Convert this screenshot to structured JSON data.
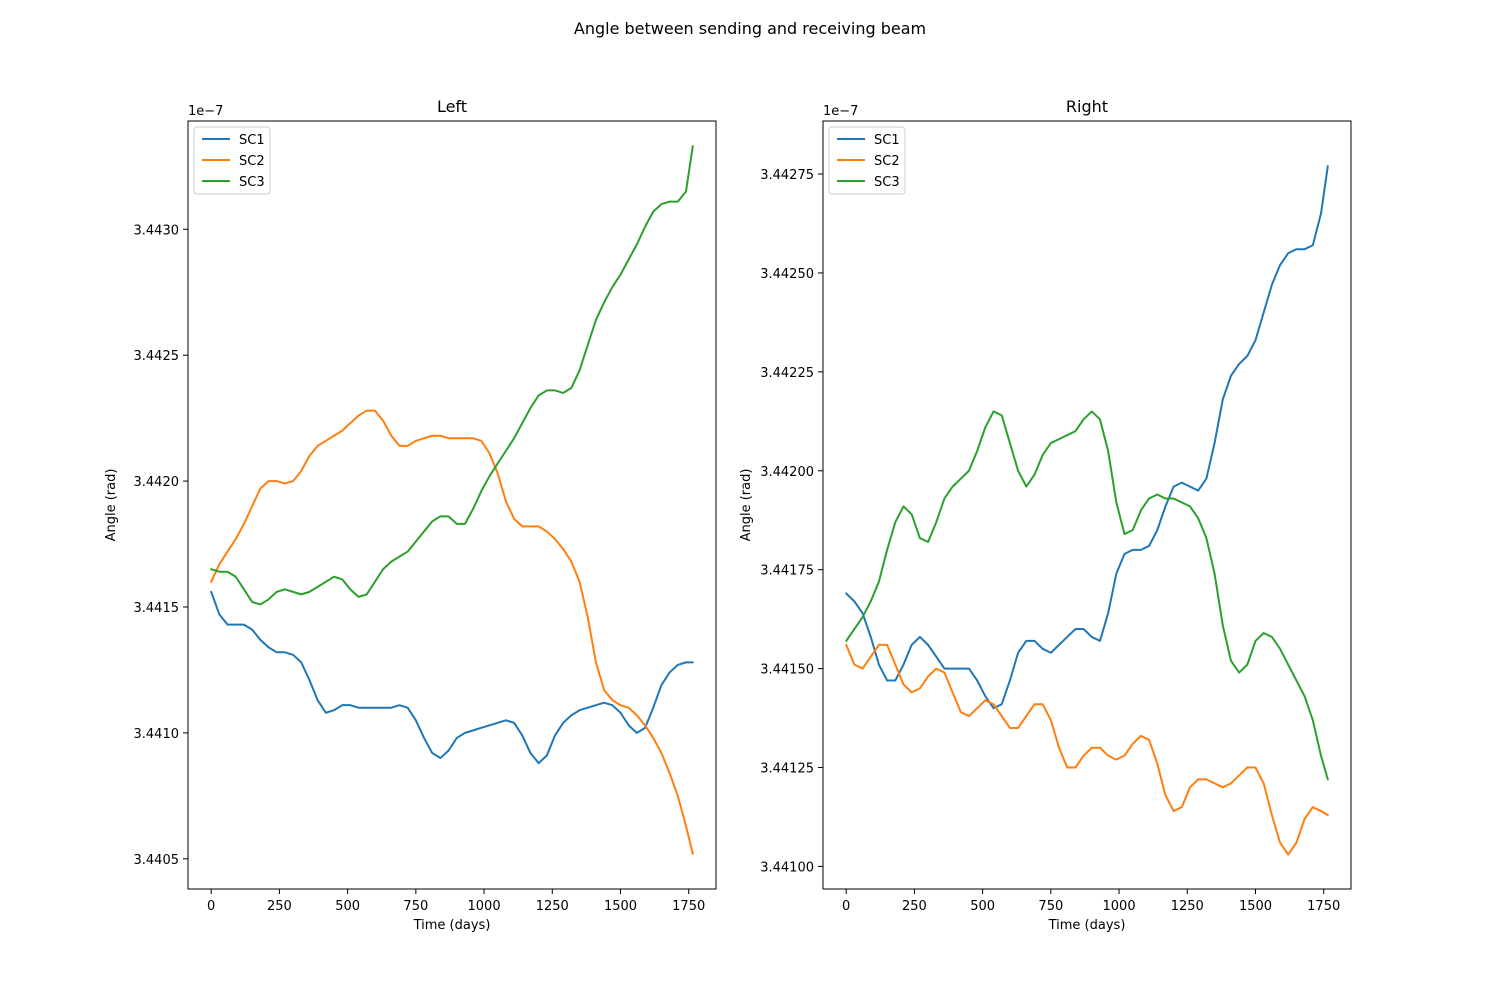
{
  "figure": {
    "title": "Angle between sending and receiving beam"
  },
  "colors": {
    "SC1": "#1f77b4",
    "SC2": "#ff7f0e",
    "SC3": "#2ca02c"
  },
  "chart_data": [
    {
      "type": "line",
      "title": "Left",
      "xlabel": "Time (days)",
      "ylabel": "Angle (rad)",
      "y_offset_label": "1e−7",
      "xlim": [
        -85,
        1850
      ],
      "ylim": [
        3.44038,
        3.44343
      ],
      "xticks": [
        0,
        250,
        500,
        750,
        1000,
        1250,
        1500,
        1750
      ],
      "xtick_labels": [
        "0",
        "250",
        "500",
        "750",
        "1000",
        "1250",
        "1500",
        "1750"
      ],
      "yticks": [
        3.4405,
        3.441,
        3.4415,
        3.442,
        3.4425,
        3.443
      ],
      "ytick_labels": [
        "3.4405",
        "3.4410",
        "3.4415",
        "3.4420",
        "3.4425",
        "3.4430"
      ],
      "legend": "upper left",
      "grid": false,
      "series": [
        {
          "name": "SC1",
          "x": [
            0,
            30,
            60,
            90,
            120,
            150,
            180,
            210,
            240,
            270,
            300,
            330,
            360,
            390,
            420,
            450,
            480,
            510,
            540,
            570,
            600,
            630,
            660,
            690,
            720,
            750,
            780,
            810,
            840,
            870,
            900,
            930,
            960,
            990,
            1020,
            1050,
            1080,
            1110,
            1140,
            1170,
            1200,
            1230,
            1260,
            1290,
            1320,
            1350,
            1380,
            1410,
            1440,
            1470,
            1500,
            1530,
            1560,
            1590,
            1620,
            1650,
            1680,
            1710,
            1740,
            1765
          ],
          "values": [
            3.44156,
            3.44147,
            3.44143,
            3.44143,
            3.44143,
            3.44141,
            3.44137,
            3.44134,
            3.44132,
            3.44132,
            3.44131,
            3.44128,
            3.44121,
            3.44113,
            3.44108,
            3.44109,
            3.44111,
            3.44111,
            3.4411,
            3.4411,
            3.4411,
            3.4411,
            3.4411,
            3.44111,
            3.4411,
            3.44105,
            3.44098,
            3.44092,
            3.4409,
            3.44093,
            3.44098,
            3.441,
            3.44101,
            3.44102,
            3.44103,
            3.44104,
            3.44105,
            3.44104,
            3.44099,
            3.44092,
            3.44088,
            3.44091,
            3.44099,
            3.44104,
            3.44107,
            3.44109,
            3.4411,
            3.44111,
            3.44112,
            3.44111,
            3.44108,
            3.44103,
            3.441,
            3.44102,
            3.4411,
            3.44119,
            3.44124,
            3.44127,
            3.44128,
            3.44128
          ]
        },
        {
          "name": "SC2",
          "x": [
            0,
            30,
            60,
            90,
            120,
            150,
            180,
            210,
            240,
            270,
            300,
            330,
            360,
            390,
            420,
            450,
            480,
            510,
            540,
            570,
            600,
            630,
            660,
            690,
            720,
            750,
            780,
            810,
            840,
            870,
            900,
            930,
            960,
            990,
            1020,
            1050,
            1080,
            1110,
            1140,
            1170,
            1200,
            1230,
            1260,
            1290,
            1320,
            1350,
            1380,
            1410,
            1440,
            1470,
            1500,
            1530,
            1560,
            1590,
            1620,
            1650,
            1680,
            1710,
            1740,
            1765
          ],
          "values": [
            3.4416,
            3.44167,
            3.44172,
            3.44177,
            3.44183,
            3.4419,
            3.44197,
            3.442,
            3.442,
            3.44199,
            3.442,
            3.44204,
            3.4421,
            3.44214,
            3.44216,
            3.44218,
            3.4422,
            3.44223,
            3.44226,
            3.44228,
            3.44228,
            3.44224,
            3.44218,
            3.44214,
            3.44214,
            3.44216,
            3.44217,
            3.44218,
            3.44218,
            3.44217,
            3.44217,
            3.44217,
            3.44217,
            3.44216,
            3.44211,
            3.44203,
            3.44192,
            3.44185,
            3.44182,
            3.44182,
            3.44182,
            3.4418,
            3.44177,
            3.44173,
            3.44168,
            3.4416,
            3.44146,
            3.44128,
            3.44117,
            3.44113,
            3.44111,
            3.4411,
            3.44107,
            3.44103,
            3.44098,
            3.44092,
            3.44084,
            3.44075,
            3.44063,
            3.44052
          ]
        },
        {
          "name": "SC3",
          "x": [
            0,
            30,
            60,
            90,
            120,
            150,
            180,
            210,
            240,
            270,
            300,
            330,
            360,
            390,
            420,
            450,
            480,
            510,
            540,
            570,
            600,
            630,
            660,
            690,
            720,
            750,
            780,
            810,
            840,
            870,
            900,
            930,
            960,
            990,
            1020,
            1050,
            1080,
            1110,
            1140,
            1170,
            1200,
            1230,
            1260,
            1290,
            1320,
            1350,
            1380,
            1410,
            1440,
            1470,
            1500,
            1530,
            1560,
            1590,
            1620,
            1650,
            1680,
            1710,
            1740,
            1765
          ],
          "values": [
            3.44165,
            3.44164,
            3.44164,
            3.44162,
            3.44157,
            3.44152,
            3.44151,
            3.44153,
            3.44156,
            3.44157,
            3.44156,
            3.44155,
            3.44156,
            3.44158,
            3.4416,
            3.44162,
            3.44161,
            3.44157,
            3.44154,
            3.44155,
            3.4416,
            3.44165,
            3.44168,
            3.4417,
            3.44172,
            3.44176,
            3.4418,
            3.44184,
            3.44186,
            3.44186,
            3.44183,
            3.44183,
            3.44189,
            3.44196,
            3.44202,
            3.44207,
            3.44212,
            3.44217,
            3.44223,
            3.44229,
            3.44234,
            3.44236,
            3.44236,
            3.44235,
            3.44237,
            3.44244,
            3.44254,
            3.44264,
            3.44271,
            3.44277,
            3.44282,
            3.44288,
            3.44294,
            3.44301,
            3.44307,
            3.4431,
            3.44311,
            3.44311,
            3.44315,
            3.44333
          ]
        }
      ]
    },
    {
      "type": "line",
      "title": "Right",
      "xlabel": "Time (days)",
      "ylabel": "Angle (rad)",
      "y_offset_label": "1e−7",
      "xlim": [
        -85,
        1850
      ],
      "ylim": [
        3.440943,
        3.442884
      ],
      "xticks": [
        0,
        250,
        500,
        750,
        1000,
        1250,
        1500,
        1750
      ],
      "xtick_labels": [
        "0",
        "250",
        "500",
        "750",
        "1000",
        "1250",
        "1500",
        "1750"
      ],
      "yticks": [
        3.441,
        3.44125,
        3.4415,
        3.44175,
        3.442,
        3.44225,
        3.4425,
        3.44275
      ],
      "ytick_labels": [
        "3.44100",
        "3.44125",
        "3.44150",
        "3.44175",
        "3.44200",
        "3.44225",
        "3.44250",
        "3.44275"
      ],
      "legend": "upper left",
      "grid": false,
      "series": [
        {
          "name": "SC1",
          "x": [
            0,
            30,
            60,
            90,
            120,
            150,
            180,
            210,
            240,
            270,
            300,
            330,
            360,
            390,
            420,
            450,
            480,
            510,
            540,
            570,
            600,
            630,
            660,
            690,
            720,
            750,
            780,
            810,
            840,
            870,
            900,
            930,
            960,
            990,
            1020,
            1050,
            1080,
            1110,
            1140,
            1170,
            1200,
            1230,
            1260,
            1290,
            1320,
            1350,
            1380,
            1410,
            1440,
            1470,
            1500,
            1530,
            1560,
            1590,
            1620,
            1650,
            1680,
            1710,
            1740,
            1765
          ],
          "values": [
            3.44169,
            3.44167,
            3.44164,
            3.44158,
            3.44151,
            3.44147,
            3.44147,
            3.44151,
            3.44156,
            3.44158,
            3.44156,
            3.44153,
            3.4415,
            3.4415,
            3.4415,
            3.4415,
            3.44147,
            3.44143,
            3.4414,
            3.44141,
            3.44147,
            3.44154,
            3.44157,
            3.44157,
            3.44155,
            3.44154,
            3.44156,
            3.44158,
            3.4416,
            3.4416,
            3.44158,
            3.44157,
            3.44164,
            3.44174,
            3.44179,
            3.4418,
            3.4418,
            3.44181,
            3.44185,
            3.44191,
            3.44196,
            3.44197,
            3.44196,
            3.44195,
            3.44198,
            3.44207,
            3.44218,
            3.44224,
            3.44227,
            3.44229,
            3.44233,
            3.4424,
            3.44247,
            3.44252,
            3.44255,
            3.44256,
            3.44256,
            3.44257,
            3.44265,
            3.44277
          ]
        },
        {
          "name": "SC2",
          "x": [
            0,
            30,
            60,
            90,
            120,
            150,
            180,
            210,
            240,
            270,
            300,
            330,
            360,
            390,
            420,
            450,
            480,
            510,
            540,
            570,
            600,
            630,
            660,
            690,
            720,
            750,
            780,
            810,
            840,
            870,
            900,
            930,
            960,
            990,
            1020,
            1050,
            1080,
            1110,
            1140,
            1170,
            1200,
            1230,
            1260,
            1290,
            1320,
            1350,
            1380,
            1410,
            1440,
            1470,
            1500,
            1530,
            1560,
            1590,
            1620,
            1650,
            1680,
            1710,
            1740,
            1765
          ],
          "values": [
            3.44156,
            3.44151,
            3.4415,
            3.44153,
            3.44156,
            3.44156,
            3.44151,
            3.44146,
            3.44144,
            3.44145,
            3.44148,
            3.4415,
            3.44149,
            3.44144,
            3.44139,
            3.44138,
            3.4414,
            3.44142,
            3.44141,
            3.44138,
            3.44135,
            3.44135,
            3.44138,
            3.44141,
            3.44141,
            3.44137,
            3.4413,
            3.44125,
            3.44125,
            3.44128,
            3.4413,
            3.4413,
            3.44128,
            3.44127,
            3.44128,
            3.44131,
            3.44133,
            3.44132,
            3.44126,
            3.44118,
            3.44114,
            3.44115,
            3.4412,
            3.44122,
            3.44122,
            3.44121,
            3.4412,
            3.44121,
            3.44123,
            3.44125,
            3.44125,
            3.44121,
            3.44113,
            3.44106,
            3.44103,
            3.44106,
            3.44112,
            3.44115,
            3.44114,
            3.44113
          ]
        },
        {
          "name": "SC3",
          "x": [
            0,
            30,
            60,
            90,
            120,
            150,
            180,
            210,
            240,
            270,
            300,
            330,
            360,
            390,
            420,
            450,
            480,
            510,
            540,
            570,
            600,
            630,
            660,
            690,
            720,
            750,
            780,
            810,
            840,
            870,
            900,
            930,
            960,
            990,
            1020,
            1050,
            1080,
            1110,
            1140,
            1170,
            1200,
            1230,
            1260,
            1290,
            1320,
            1350,
            1380,
            1410,
            1440,
            1470,
            1500,
            1530,
            1560,
            1590,
            1620,
            1650,
            1680,
            1710,
            1740,
            1765
          ],
          "values": [
            3.44157,
            3.4416,
            3.44163,
            3.44167,
            3.44172,
            3.4418,
            3.44187,
            3.44191,
            3.44189,
            3.44183,
            3.44182,
            3.44187,
            3.44193,
            3.44196,
            3.44198,
            3.442,
            3.44205,
            3.44211,
            3.44215,
            3.44214,
            3.44207,
            3.442,
            3.44196,
            3.44199,
            3.44204,
            3.44207,
            3.44208,
            3.44209,
            3.4421,
            3.44213,
            3.44215,
            3.44213,
            3.44205,
            3.44192,
            3.44184,
            3.44185,
            3.4419,
            3.44193,
            3.44194,
            3.44193,
            3.44193,
            3.44192,
            3.44191,
            3.44188,
            3.44183,
            3.44174,
            3.44161,
            3.44152,
            3.44149,
            3.44151,
            3.44157,
            3.44159,
            3.44158,
            3.44155,
            3.44151,
            3.44147,
            3.44143,
            3.44137,
            3.44128,
            3.44122
          ]
        }
      ]
    }
  ]
}
